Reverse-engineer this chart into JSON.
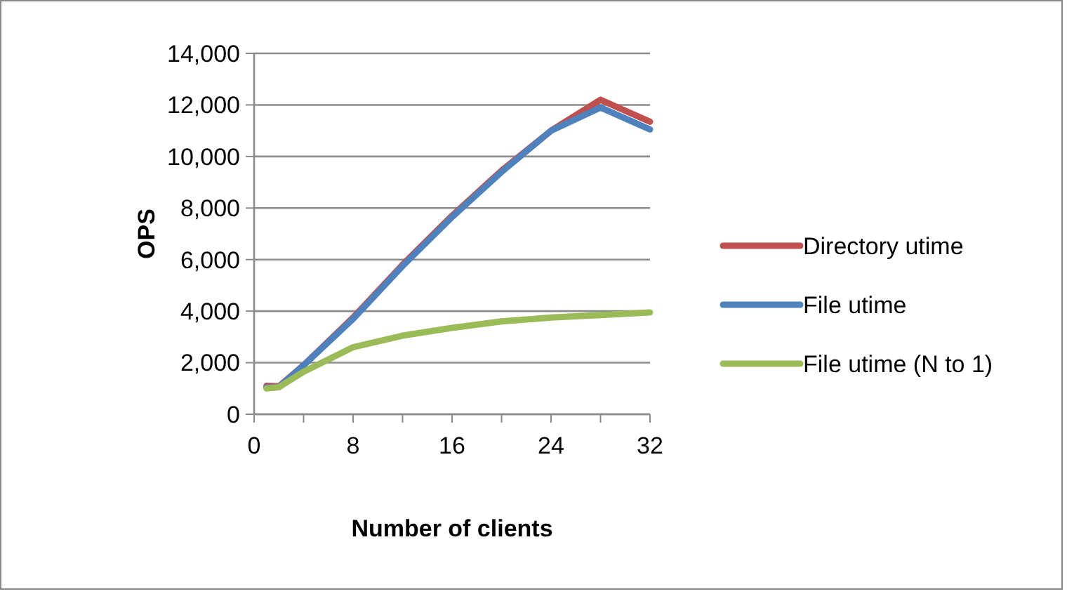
{
  "chart_data": {
    "type": "line",
    "xlabel": "Number of clients",
    "ylabel": "OPS",
    "x": [
      1,
      2,
      4,
      8,
      12,
      16,
      20,
      24,
      28,
      32
    ],
    "series": [
      {
        "name": "Directory utime",
        "color": "#c0504d",
        "values": [
          1100,
          1080,
          1900,
          3750,
          5800,
          7700,
          9450,
          11000,
          12200,
          11350
        ]
      },
      {
        "name": "File utime",
        "color": "#4f81bd",
        "values": [
          1040,
          1050,
          1900,
          3700,
          5750,
          7650,
          9400,
          11000,
          11900,
          11050
        ]
      },
      {
        "name": "File utime (N to 1)",
        "color": "#9bbb59",
        "values": [
          1000,
          1050,
          1650,
          2600,
          3050,
          3350,
          3600,
          3750,
          3850,
          3950
        ]
      }
    ],
    "xlim": [
      0,
      32
    ],
    "xticks": [
      0,
      {
        "value": 4,
        "label": null
      },
      8,
      {
        "value": 12,
        "label": null
      },
      16,
      {
        "value": 20,
        "label": null
      },
      24,
      {
        "value": 28,
        "label": null
      },
      32
    ],
    "ylim": [
      0,
      14000
    ],
    "yticks": [
      0,
      {
        "value": 2000,
        "label": "2,000"
      },
      {
        "value": 4000,
        "label": "4,000"
      },
      {
        "value": 6000,
        "label": "6,000"
      },
      {
        "value": 8000,
        "label": "8,000"
      },
      {
        "value": 10000,
        "label": "10,000"
      },
      {
        "value": 12000,
        "label": "12,000"
      },
      {
        "value": 14000,
        "label": "14,000"
      }
    ],
    "grid": "y",
    "legend": "right",
    "marker": "none",
    "line_style": "solid"
  }
}
